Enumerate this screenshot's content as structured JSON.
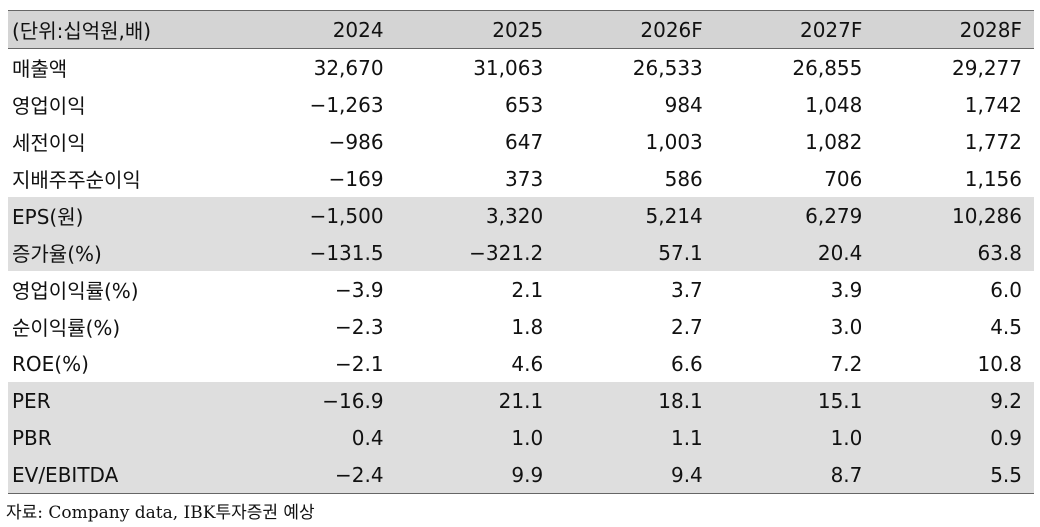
{
  "unit_header": "(단위:십억원,배)",
  "years": [
    "2024",
    "2025",
    "2026F",
    "2027F",
    "2028F"
  ],
  "rows": [
    {
      "label": "매출액",
      "values": [
        "32,670",
        "31,063",
        "26,533",
        "26,855",
        "29,277"
      ],
      "shaded": false
    },
    {
      "label": "영업이익",
      "values": [
        "−1,263",
        "653",
        "984",
        "1,048",
        "1,742"
      ],
      "shaded": false
    },
    {
      "label": "세전이익",
      "values": [
        "−986",
        "647",
        "1,003",
        "1,082",
        "1,772"
      ],
      "shaded": false
    },
    {
      "label": "지배주주순이익",
      "values": [
        "−169",
        "373",
        "586",
        "706",
        "1,156"
      ],
      "shaded": false
    },
    {
      "label": "EPS(원)",
      "values": [
        "−1,500",
        "3,320",
        "5,214",
        "6,279",
        "10,286"
      ],
      "shaded": true
    },
    {
      "label": "증가율(%)",
      "values": [
        "−131.5",
        "−321.2",
        "57.1",
        "20.4",
        "63.8"
      ],
      "shaded": true
    },
    {
      "label": "영업이익률(%)",
      "values": [
        "−3.9",
        "2.1",
        "3.7",
        "3.9",
        "6.0"
      ],
      "shaded": false
    },
    {
      "label": "순이익률(%)",
      "values": [
        "−2.3",
        "1.8",
        "2.7",
        "3.0",
        "4.5"
      ],
      "shaded": false
    },
    {
      "label": "ROE(%)",
      "values": [
        "−2.1",
        "4.6",
        "6.6",
        "7.2",
        "10.8"
      ],
      "shaded": false
    },
    {
      "label": "PER",
      "values": [
        "−16.9",
        "21.1",
        "18.1",
        "15.1",
        "9.2"
      ],
      "shaded": true
    },
    {
      "label": "PBR",
      "values": [
        "0.4",
        "1.0",
        "1.1",
        "1.0",
        "0.9"
      ],
      "shaded": true
    },
    {
      "label": "EV/EBITDA",
      "values": [
        "−2.4",
        "9.9",
        "9.4",
        "8.7",
        "5.5"
      ],
      "shaded": true
    }
  ],
  "source": "자료: Company data, IBK투자증권 예상",
  "colors": {
    "header_bg": "#d4d4d4",
    "shaded_bg": "#dedede",
    "rule": "#666666"
  }
}
